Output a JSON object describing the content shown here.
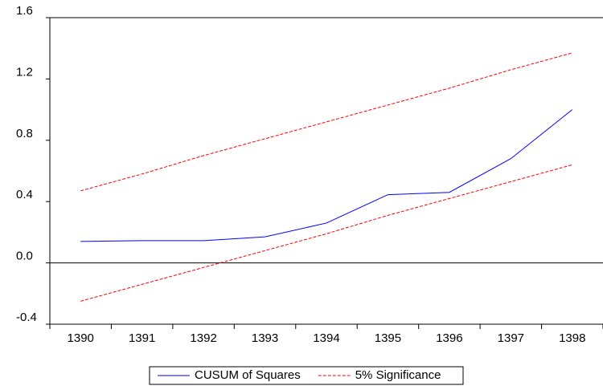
{
  "chart_data": {
    "type": "line",
    "categories": [
      "1390",
      "1391",
      "1392",
      "1393",
      "1394",
      "1395",
      "1396",
      "1397",
      "1398"
    ],
    "series": [
      {
        "name": "CUSUM of Squares",
        "color": "#0000ff",
        "values": [
          0.14,
          0.145,
          0.145,
          0.17,
          0.26,
          0.445,
          0.46,
          0.68,
          1.0
        ]
      },
      {
        "name": "5% Significance",
        "color": "#ff0000",
        "upper": [
          0.47,
          0.58,
          0.7,
          0.81,
          0.92,
          1.03,
          1.14,
          1.26,
          1.37
        ],
        "lower": [
          -0.25,
          -0.14,
          -0.03,
          0.08,
          0.19,
          0.31,
          0.42,
          0.53,
          0.64
        ]
      }
    ],
    "ylim": [
      -0.4,
      1.6
    ],
    "yticks": [
      -0.4,
      {
        "value": 0,
        "label": "0.0"
      },
      0.4,
      0.8,
      1.2,
      1.6
    ]
  }
}
